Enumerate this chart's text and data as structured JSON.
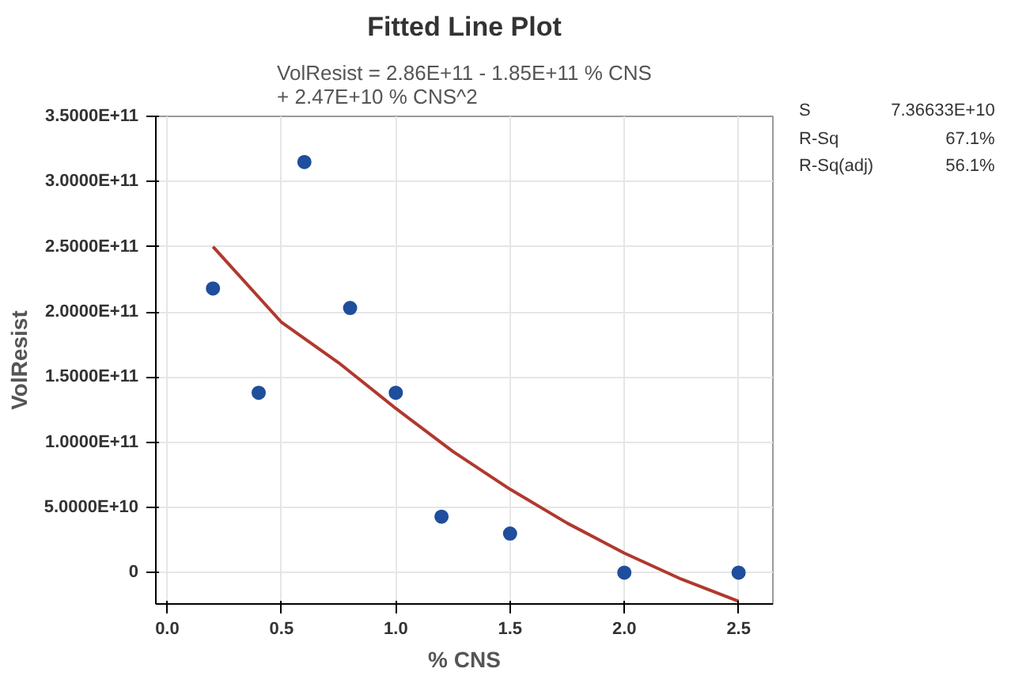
{
  "chart_data": {
    "type": "scatter",
    "title": "Fitted Line Plot",
    "subtitle": "VolResist = 2.86E+11 - 1.85E+11 % CNS\n+ 2.47E+10 % CNS^2",
    "xlabel": "% CNS",
    "ylabel": "VolResist",
    "annotations": [
      "S",
      "7.36633E+10",
      "R-Sq",
      "67.1%",
      "R-Sq(adj)",
      "56.1%"
    ],
    "series": [
      {
        "color": "#1f4e9c",
        "x": [
          0.2,
          0.4,
          0.6,
          0.8,
          1.0,
          1.2,
          1.5,
          2.0,
          2.5
        ],
        "values": [
          218000000000.0,
          138000000000.0,
          315000000000.0,
          203000000000.0,
          138000000000.0,
          43000000000.0,
          30000000000.0,
          0,
          0
        ]
      },
      {
        "type": "line",
        "marker": "none",
        "color": "#b0392e",
        "x": [
          0.2,
          0.5,
          0.75,
          1.0,
          1.25,
          1.5,
          1.75,
          2.0,
          2.25,
          2.5
        ],
        "values": [
          250000000000.0,
          192000000000.0,
          161000000000.0,
          126000000000.0,
          93000000000.0,
          64000000000.0,
          38000000000.0,
          15000000000.0,
          -5000000000.0,
          -22000000000.0
        ]
      }
    ],
    "xlim": [
      -0.05,
      2.65
    ],
    "ylim": [
      -24000000000.0,
      350000000000.0
    ],
    "xticks": [
      {
        "value": 0,
        "label": "0.0"
      },
      {
        "value": 0.5,
        "label": "0.5"
      },
      {
        "value": 1.0,
        "label": "1.0"
      },
      {
        "value": 1.5,
        "label": "1.5"
      },
      {
        "value": 2.0,
        "label": "2.0"
      },
      {
        "value": 2.5,
        "label": "2.5"
      }
    ],
    "yticks": [
      0,
      {
        "value": 50000000000.0,
        "label": "5.0000E+10"
      },
      {
        "value": 100000000000.0,
        "label": "1.0000E+11"
      },
      {
        "value": 150000000000.0,
        "label": "1.5000E+11"
      },
      {
        "value": 200000000000.0,
        "label": "2.0000E+11"
      },
      {
        "value": 250000000000.0,
        "label": "2.5000E+11"
      },
      {
        "value": 300000000000.0,
        "label": "3.0000E+11"
      },
      {
        "value": 350000000000.0,
        "label": "3.5000E+11"
      }
    ],
    "grid": true,
    "marker": "circle",
    "line_style": "solid"
  }
}
